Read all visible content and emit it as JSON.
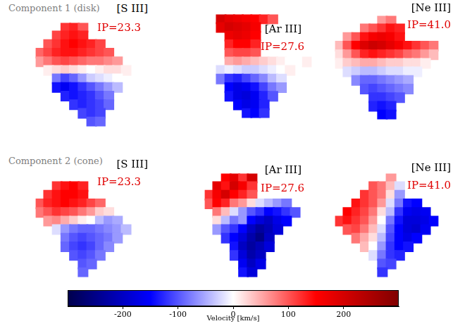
{
  "chart_data": {
    "type": "heatmap",
    "tick_labels": false,
    "row_labels": [
      "Component 1 (disk)",
      "Component 2 (cone)"
    ],
    "panels": [
      {
        "title": "[S III]",
        "ip_label": "IP=23.3",
        "center": [
          6.0,
          4.5
        ],
        "cells": [
          [
            null,
            null,
            null,
            120,
            130,
            100,
            null,
            null,
            null,
            null,
            null,
            null
          ],
          [
            null,
            null,
            110,
            130,
            140,
            130,
            null,
            null,
            null,
            null,
            null,
            null
          ],
          [
            null,
            100,
            120,
            140,
            150,
            140,
            130,
            110,
            null,
            null,
            null,
            null
          ],
          [
            90,
            110,
            130,
            140,
            140,
            130,
            120,
            110,
            100,
            null,
            null,
            null
          ],
          [
            60,
            80,
            100,
            110,
            100,
            90,
            80,
            80,
            70,
            60,
            null,
            null
          ],
          [
            null,
            10,
            20,
            30,
            20,
            10,
            0,
            10,
            20,
            20,
            10,
            null
          ],
          [
            null,
            null,
            -80,
            -110,
            -90,
            -60,
            -30,
            -20,
            -10,
            0,
            null,
            null
          ],
          [
            null,
            null,
            -140,
            -160,
            -140,
            -120,
            -100,
            -80,
            -60,
            -40,
            null,
            null
          ],
          [
            null,
            null,
            null,
            -130,
            -140,
            -130,
            -120,
            -100,
            -80,
            null,
            null,
            null
          ],
          [
            null,
            null,
            null,
            null,
            -120,
            -130,
            -120,
            -110,
            -90,
            null,
            null,
            null
          ],
          [
            null,
            null,
            null,
            null,
            null,
            -110,
            -120,
            -110,
            null,
            null,
            null,
            null
          ],
          [
            null,
            null,
            null,
            null,
            null,
            null,
            -100,
            -90,
            null,
            null,
            null,
            null
          ]
        ]
      },
      {
        "title": "[Ar III]",
        "ip_label": "IP=27.6",
        "center": [
          3.5,
          5.0
        ],
        "cells": [
          [
            null,
            200,
            180,
            170,
            160,
            150,
            130,
            100,
            null,
            null,
            null,
            null
          ],
          [
            null,
            180,
            200,
            190,
            180,
            160,
            null,
            null,
            null,
            null,
            null,
            null
          ],
          [
            null,
            null,
            170,
            180,
            170,
            150,
            null,
            null,
            null,
            null,
            null,
            null
          ],
          [
            null,
            null,
            130,
            150,
            150,
            130,
            null,
            null,
            null,
            null,
            null,
            null
          ],
          [
            null,
            null,
            100,
            110,
            110,
            100,
            null,
            null,
            null,
            null,
            null,
            null
          ],
          [
            null,
            null,
            50,
            60,
            50,
            40,
            30,
            20,
            10,
            0,
            0,
            10
          ],
          [
            null,
            -20,
            -10,
            -20,
            -30,
            -30,
            -20,
            -10,
            0,
            10,
            null,
            null
          ],
          [
            null,
            -80,
            -120,
            -130,
            -110,
            -90,
            -70,
            -40,
            -20,
            null,
            null,
            null
          ],
          [
            null,
            null,
            -150,
            -170,
            -160,
            -140,
            -110,
            -80,
            -60,
            null,
            null,
            null
          ],
          [
            null,
            null,
            -140,
            -170,
            -180,
            -160,
            -130,
            -100,
            null,
            null,
            null,
            null
          ],
          [
            null,
            null,
            null,
            -150,
            -170,
            -160,
            -130,
            null,
            null,
            null,
            null,
            null
          ],
          [
            null,
            null,
            null,
            null,
            -140,
            -150,
            -120,
            null,
            null,
            null,
            null,
            null
          ]
        ]
      },
      {
        "title": "[Ne III]",
        "ip_label": "IP=41.0",
        "center": [
          5.8,
          5.5
        ],
        "cells": [
          [
            null,
            null,
            null,
            null,
            null,
            60,
            80,
            null,
            null,
            null,
            null,
            null
          ],
          [
            null,
            null,
            null,
            80,
            100,
            120,
            140,
            130,
            null,
            null,
            null,
            null
          ],
          [
            null,
            60,
            100,
            140,
            160,
            170,
            160,
            140,
            null,
            null,
            null,
            null
          ],
          [
            40,
            100,
            150,
            190,
            210,
            200,
            180,
            160,
            140,
            120,
            100,
            80
          ],
          [
            20,
            60,
            100,
            130,
            140,
            130,
            120,
            110,
            90,
            80,
            60,
            40
          ],
          [
            10,
            30,
            40,
            50,
            50,
            40,
            30,
            30,
            20,
            20,
            10,
            null
          ],
          [
            null,
            -20,
            -30,
            -40,
            -40,
            -30,
            -20,
            -20,
            -10,
            -10,
            null,
            null
          ],
          [
            null,
            null,
            -70,
            -90,
            -90,
            -80,
            -70,
            -60,
            -50,
            null,
            null,
            null
          ],
          [
            null,
            null,
            null,
            -100,
            -110,
            -100,
            -90,
            -80,
            -70,
            null,
            null,
            null
          ],
          [
            null,
            null,
            null,
            null,
            -120,
            -120,
            -110,
            -100,
            null,
            null,
            null,
            null
          ],
          [
            null,
            null,
            null,
            null,
            -130,
            -140,
            -130,
            null,
            null,
            null,
            null,
            null
          ],
          [
            null,
            null,
            null,
            null,
            null,
            -150,
            -140,
            null,
            null,
            null,
            null,
            null
          ]
        ]
      },
      {
        "title": "[S III]",
        "ip_label": "IP=23.3",
        "center": [
          6.0,
          5.0
        ],
        "cells": [
          [
            null,
            null,
            null,
            null,
            null,
            null,
            null,
            null,
            null,
            null,
            null,
            null
          ],
          [
            null,
            null,
            120,
            140,
            150,
            130,
            null,
            null,
            null,
            null,
            null,
            null
          ],
          [
            null,
            120,
            140,
            150,
            150,
            140,
            null,
            null,
            null,
            null,
            null,
            null
          ],
          [
            100,
            130,
            140,
            150,
            140,
            130,
            110,
            90,
            null,
            null,
            null,
            null
          ],
          [
            80,
            100,
            120,
            110,
            100,
            80,
            60,
            30,
            20,
            null,
            null,
            null
          ],
          [
            null,
            60,
            70,
            50,
            30,
            10,
            0,
            -40,
            -60,
            -50,
            null,
            null
          ],
          [
            null,
            null,
            -20,
            -60,
            -80,
            -90,
            -90,
            -80,
            -70,
            -60,
            -40,
            null
          ],
          [
            null,
            null,
            null,
            -80,
            -100,
            -110,
            -100,
            -90,
            -80,
            -60,
            null,
            null
          ],
          [
            null,
            null,
            null,
            -90,
            -110,
            -120,
            -110,
            -90,
            -70,
            null,
            null,
            null
          ],
          [
            null,
            null,
            null,
            null,
            -100,
            -110,
            -100,
            -80,
            null,
            null,
            null,
            null
          ],
          [
            null,
            null,
            null,
            null,
            null,
            -100,
            -90,
            null,
            null,
            null,
            null,
            null
          ],
          [
            null,
            null,
            null,
            null,
            null,
            -90,
            null,
            null,
            null,
            null,
            null,
            null
          ]
        ]
      },
      {
        "title": "[Ar III]",
        "ip_label": "IP=27.6",
        "center": [
          4.2,
          4.4
        ],
        "cells": [
          [
            null,
            null,
            150,
            180,
            120,
            200,
            null,
            null,
            null,
            null,
            null,
            null
          ],
          [
            null,
            180,
            140,
            200,
            160,
            120,
            null,
            null,
            null,
            null,
            null,
            null
          ],
          [
            120,
            160,
            200,
            150,
            130,
            100,
            null,
            null,
            null,
            null,
            null,
            null
          ],
          [
            100,
            150,
            130,
            80,
            60,
            20,
            -20,
            -40,
            -60,
            -80,
            null,
            null
          ],
          [
            null,
            80,
            40,
            -20,
            -60,
            -100,
            -120,
            -150,
            -140,
            -120,
            -100,
            null
          ],
          [
            null,
            20,
            -40,
            -80,
            -60,
            -150,
            -180,
            -200,
            -170,
            -150,
            null,
            null
          ],
          [
            null,
            -60,
            -100,
            -120,
            -150,
            -200,
            -230,
            -210,
            -180,
            null,
            null,
            null
          ],
          [
            null,
            null,
            -120,
            -150,
            -180,
            -220,
            -250,
            -200,
            null,
            null,
            null,
            null
          ],
          [
            null,
            null,
            null,
            -140,
            -200,
            -230,
            -210,
            -180,
            null,
            null,
            null,
            null
          ],
          [
            null,
            null,
            null,
            -120,
            -180,
            -220,
            -200,
            null,
            null,
            null,
            null,
            null
          ],
          [
            null,
            null,
            null,
            null,
            -160,
            -200,
            -170,
            null,
            null,
            null,
            null,
            null
          ],
          [
            null,
            null,
            null,
            null,
            -140,
            -180,
            null,
            null,
            null,
            null,
            null,
            null
          ]
        ]
      },
      {
        "title": "[Ne III]",
        "ip_label": "IP=41.0",
        "center": [
          5.8,
          5.8
        ],
        "cells": [
          [
            null,
            null,
            null,
            null,
            null,
            null,
            60,
            null,
            null,
            null,
            null,
            null
          ],
          [
            null,
            null,
            null,
            null,
            100,
            80,
            40,
            -20,
            null,
            null,
            null,
            null
          ],
          [
            null,
            null,
            null,
            120,
            100,
            80,
            20,
            -60,
            null,
            null,
            null,
            null
          ],
          [
            null,
            null,
            140,
            120,
            100,
            60,
            -20,
            -80,
            -140,
            -150,
            null,
            null
          ],
          [
            null,
            150,
            130,
            110,
            80,
            20,
            -40,
            -120,
            -160,
            -170,
            -160,
            null
          ],
          [
            120,
            140,
            120,
            100,
            60,
            0,
            -80,
            -140,
            -180,
            -180,
            -170,
            -150
          ],
          [
            null,
            100,
            110,
            80,
            40,
            -20,
            -100,
            -150,
            -180,
            -190,
            -160,
            null
          ],
          [
            null,
            null,
            80,
            50,
            20,
            -40,
            -110,
            -150,
            -170,
            -150,
            null,
            null
          ],
          [
            null,
            null,
            null,
            40,
            0,
            -60,
            -120,
            -150,
            -140,
            null,
            null,
            null
          ],
          [
            null,
            null,
            null,
            null,
            -20,
            -80,
            -120,
            -130,
            null,
            null,
            null,
            null
          ],
          [
            null,
            null,
            null,
            null,
            null,
            -100,
            -110,
            null,
            null,
            null,
            null,
            null
          ],
          [
            null,
            null,
            null,
            null,
            null,
            -120,
            null,
            null,
            null,
            null,
            null,
            null
          ]
        ]
      }
    ],
    "colorbar": {
      "label": "Velocity [km/s]",
      "range": [
        -300,
        300
      ],
      "ticks": [
        -200,
        -100,
        0,
        100,
        200
      ]
    }
  }
}
